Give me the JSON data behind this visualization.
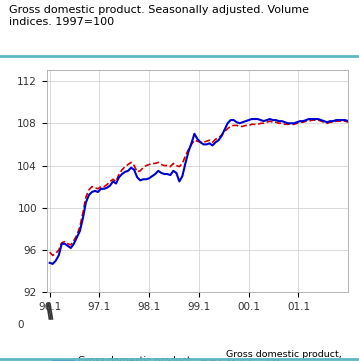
{
  "title": "Gross domestic product. Seasonally adjusted. Volume\nindices. 1997=100",
  "title_color": "#000000",
  "background_color": "#ffffff",
  "plot_bg_color": "#ffffff",
  "grid_color": "#cccccc",
  "header_bar_color": "#5bb8c4",
  "gdp_color": "#0000cc",
  "mainland_color": "#cc0000",
  "legend_gdp": "Gross domestic product",
  "legend_mainland": "Gross domestic product,\nMainland-Norway",
  "ylim_data": [
    92,
    113
  ],
  "yticks_data": [
    92,
    96,
    100,
    104,
    108,
    112
  ],
  "xtick_labels": [
    "96.1",
    "97.1",
    "98.1",
    "99.1",
    "00.1",
    "01.1"
  ],
  "xtick_positions": [
    0,
    16.5,
    33,
    49.5,
    66,
    82.5
  ],
  "xlim": [
    -1,
    99
  ],
  "gdp_y": [
    94.8,
    94.7,
    95.0,
    95.5,
    96.6,
    96.6,
    96.4,
    96.2,
    96.6,
    97.2,
    97.8,
    99.0,
    100.5,
    101.2,
    101.5,
    101.6,
    101.5,
    101.8,
    101.8,
    101.9,
    102.1,
    102.5,
    102.3,
    102.9,
    103.2,
    103.4,
    103.5,
    103.8,
    103.6,
    102.9,
    102.6,
    102.7,
    102.7,
    102.8,
    103.0,
    103.2,
    103.5,
    103.3,
    103.2,
    103.2,
    103.1,
    103.5,
    103.3,
    102.5,
    103.0,
    104.2,
    105.3,
    106.1,
    107.0,
    106.5,
    106.2,
    106.0,
    106.0,
    106.1,
    105.9,
    106.2,
    106.4,
    106.8,
    107.4,
    108.0,
    108.3,
    108.3,
    108.1,
    108.0,
    108.1,
    108.2,
    108.3,
    108.4,
    108.4,
    108.4,
    108.3,
    108.2,
    108.3,
    108.4,
    108.3,
    108.3,
    108.2,
    108.2,
    108.1,
    108.0,
    108.0,
    108.0,
    108.1,
    108.2,
    108.2,
    108.3,
    108.4,
    108.4,
    108.4,
    108.4,
    108.3,
    108.2,
    108.1,
    108.2,
    108.2,
    108.3,
    108.3,
    108.3,
    108.3,
    108.2
  ],
  "mainland_y": [
    95.8,
    95.5,
    95.7,
    96.0,
    96.7,
    96.8,
    96.6,
    96.5,
    96.9,
    97.4,
    98.2,
    99.5,
    101.0,
    101.7,
    102.0,
    101.9,
    101.8,
    102.0,
    102.0,
    102.2,
    102.5,
    102.7,
    102.5,
    103.2,
    103.6,
    103.9,
    104.1,
    104.3,
    104.0,
    103.4,
    103.5,
    103.8,
    104.0,
    104.1,
    104.2,
    104.2,
    104.3,
    104.1,
    104.0,
    104.0,
    103.9,
    104.2,
    104.0,
    103.9,
    104.2,
    104.9,
    105.5,
    106.0,
    106.4,
    106.3,
    106.2,
    106.2,
    106.3,
    106.4,
    106.2,
    106.5,
    106.6,
    106.9,
    107.2,
    107.5,
    107.7,
    107.8,
    107.8,
    107.7,
    107.7,
    107.8,
    107.8,
    107.9,
    107.9,
    107.9,
    108.0,
    108.0,
    108.1,
    108.2,
    108.1,
    108.1,
    108.0,
    108.0,
    107.9,
    107.9,
    107.9,
    107.9,
    108.0,
    108.1,
    108.1,
    108.2,
    108.2,
    108.3,
    108.3,
    108.3,
    108.2,
    108.1,
    108.0,
    108.1,
    108.1,
    108.2,
    108.2,
    108.2,
    108.2,
    108.1
  ]
}
